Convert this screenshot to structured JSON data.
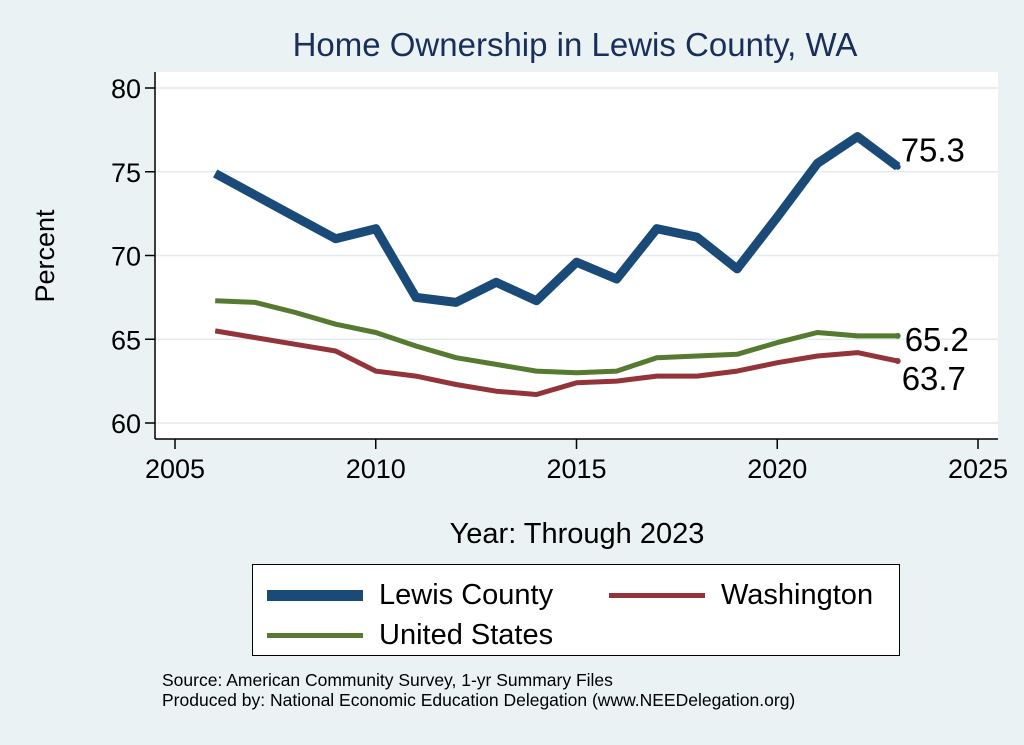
{
  "chart_data": {
    "type": "line",
    "title": "Home Ownership in Lewis County, WA",
    "xlabel": "Year: Through 2023",
    "ylabel": "Percent",
    "xlim": [
      2005,
      2025
    ],
    "ylim": [
      60,
      80
    ],
    "xticks": [
      2005,
      2010,
      2015,
      2020,
      2025
    ],
    "yticks": [
      60,
      65,
      70,
      75,
      80
    ],
    "grid": true,
    "legend_position": "bottom",
    "series": [
      {
        "name": "Lewis County",
        "color": "#1a4a78",
        "end_label": "75.3",
        "x": [
          2006,
          2007,
          2008,
          2009,
          2010,
          2011,
          2012,
          2013,
          2014,
          2015,
          2016,
          2017,
          2018,
          2019,
          2020,
          2021,
          2022,
          2023
        ],
        "y": [
          74.9,
          73.6,
          72.3,
          71.0,
          71.6,
          67.5,
          67.2,
          68.4,
          67.3,
          69.6,
          68.6,
          71.6,
          71.1,
          69.2,
          72.3,
          75.5,
          77.1,
          75.3
        ]
      },
      {
        "name": "Washington",
        "color": "#93343a",
        "end_label": "63.7",
        "x": [
          2006,
          2007,
          2008,
          2009,
          2010,
          2011,
          2012,
          2013,
          2014,
          2015,
          2016,
          2017,
          2018,
          2019,
          2020,
          2021,
          2022,
          2023
        ],
        "y": [
          65.5,
          65.1,
          64.7,
          64.3,
          63.1,
          62.8,
          62.3,
          61.9,
          61.7,
          62.4,
          62.5,
          62.8,
          62.8,
          63.1,
          63.6,
          64.0,
          64.2,
          63.7
        ]
      },
      {
        "name": "United States",
        "color": "#557a30",
        "end_label": "65.2",
        "x": [
          2006,
          2007,
          2008,
          2009,
          2010,
          2011,
          2012,
          2013,
          2014,
          2015,
          2016,
          2017,
          2018,
          2019,
          2020,
          2021,
          2022,
          2023
        ],
        "y": [
          67.3,
          67.2,
          66.6,
          65.9,
          65.4,
          64.6,
          63.9,
          63.5,
          63.1,
          63.0,
          63.1,
          63.9,
          64.0,
          64.1,
          64.8,
          65.4,
          65.2,
          65.2
        ]
      }
    ]
  },
  "notes": {
    "source": "Source: American Community Survey, 1-yr Summary Files",
    "produced_by": "Produced by: National Economic Education Delegation (www.NEEDelegation.org)"
  }
}
